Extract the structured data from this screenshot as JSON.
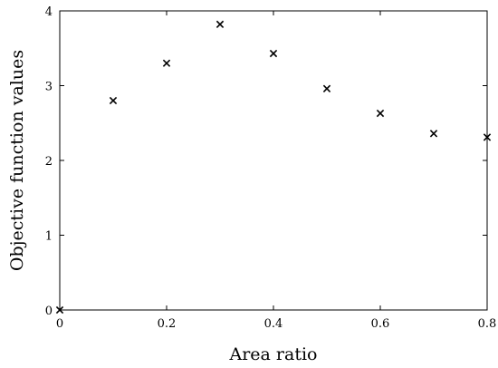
{
  "chart_data": {
    "type": "scatter",
    "title": "",
    "xlabel": "Area ratio",
    "ylabel": "Objective function values",
    "xlim": [
      0,
      0.8
    ],
    "ylim": [
      0,
      4
    ],
    "x_ticks": [
      0,
      0.2,
      0.4,
      0.6,
      0.8
    ],
    "x_tick_labels": [
      "0",
      "0.2",
      "0.4",
      "0.6",
      "0.8"
    ],
    "y_ticks": [
      0,
      1,
      2,
      3,
      4
    ],
    "y_tick_labels": [
      "0",
      "1",
      "2",
      "3",
      "4"
    ],
    "grid": false,
    "marker": "x",
    "marker_color": "#000000",
    "series": [
      {
        "x": [
          0,
          0.1,
          0.2,
          0.3,
          0.4,
          0.5,
          0.6,
          0.7,
          0.8
        ],
        "y": [
          0,
          2.8,
          3.3,
          3.82,
          3.43,
          2.96,
          2.63,
          2.36,
          2.31
        ]
      }
    ]
  }
}
